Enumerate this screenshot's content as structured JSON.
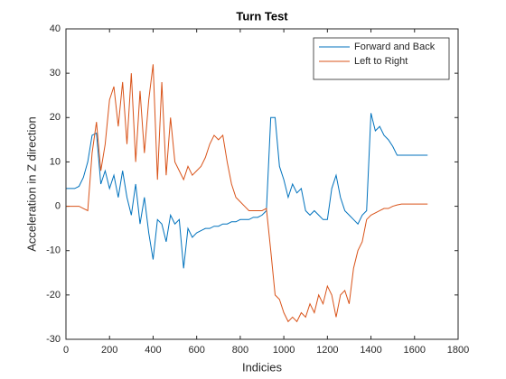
{
  "chart_data": {
    "type": "line",
    "title": "Turn Test",
    "x_label": "Indicies",
    "y_label": "Acceleration in Z direction",
    "x": [
      0,
      20,
      40,
      60,
      80,
      100,
      120,
      140,
      160,
      180,
      200,
      220,
      240,
      260,
      280,
      300,
      320,
      340,
      360,
      380,
      400,
      420,
      440,
      460,
      480,
      500,
      520,
      540,
      560,
      580,
      600,
      620,
      640,
      660,
      680,
      700,
      720,
      740,
      760,
      780,
      800,
      820,
      840,
      860,
      880,
      900,
      920,
      940,
      960,
      980,
      1000,
      1020,
      1040,
      1060,
      1080,
      1100,
      1120,
      1140,
      1160,
      1180,
      1200,
      1220,
      1240,
      1260,
      1280,
      1300,
      1320,
      1340,
      1360,
      1380,
      1400,
      1420,
      1440,
      1460,
      1480,
      1500,
      1520,
      1540,
      1560,
      1580,
      1600,
      1620,
      1640,
      1660
    ],
    "series": [
      {
        "name": "Forward and Back",
        "color": "#0072BD",
        "values": [
          4,
          4,
          4,
          4.5,
          6.5,
          10,
          16,
          16.5,
          5,
          8,
          4,
          7,
          2,
          8,
          2,
          -2,
          5,
          -4,
          2,
          -6,
          -12,
          -3,
          -4,
          -8,
          -2,
          -4,
          -3,
          -14,
          -5,
          -7,
          -6,
          -5.5,
          -5,
          -5,
          -4.5,
          -4.5,
          -4,
          -4,
          -3.5,
          -3.5,
          -3,
          -3,
          -3,
          -2.5,
          -2.5,
          -2,
          -1,
          20,
          20,
          9,
          6,
          2,
          5,
          3,
          4,
          -1,
          -2,
          -1,
          -2,
          -3,
          -3,
          4,
          7,
          2,
          -1,
          -2,
          -3,
          -4,
          -2,
          -1,
          21,
          17,
          18,
          16,
          15,
          13.5,
          11.5,
          11.5,
          11.5,
          11.5,
          11.5,
          11.5,
          11.5,
          11.5
        ]
      },
      {
        "name": "Left to Right",
        "color": "#D95319",
        "values": [
          0,
          0,
          0,
          0,
          -0.5,
          -1,
          12,
          19,
          8,
          14,
          24,
          27,
          18,
          28,
          14,
          30,
          10,
          26,
          12,
          24,
          32,
          6,
          28,
          7,
          20,
          10,
          8,
          6,
          9,
          7,
          8,
          9,
          11,
          14,
          16,
          15,
          16,
          10,
          5,
          2,
          1,
          0,
          -1,
          -1,
          -1,
          -1,
          -0.5,
          -10,
          -20,
          -21,
          -24,
          -26,
          -25,
          -26,
          -24,
          -25,
          -22,
          -24,
          -20,
          -22,
          -18,
          -20,
          -25,
          -20,
          -19,
          -22,
          -14,
          -10,
          -8,
          -3,
          -2,
          -1.5,
          -1,
          -0.5,
          -0.5,
          0,
          0.3,
          0.5,
          0.5,
          0.5,
          0.5,
          0.5,
          0.5,
          0.5
        ]
      }
    ],
    "xlim": [
      0,
      1800
    ],
    "xticks": [
      0,
      200,
      400,
      600,
      800,
      1000,
      1200,
      1400,
      1600,
      1800
    ],
    "ylim": [
      -30,
      40
    ],
    "yticks": [
      -30,
      -20,
      -10,
      0,
      10,
      20,
      30,
      40
    ],
    "grid": false,
    "legend": "top-right"
  }
}
